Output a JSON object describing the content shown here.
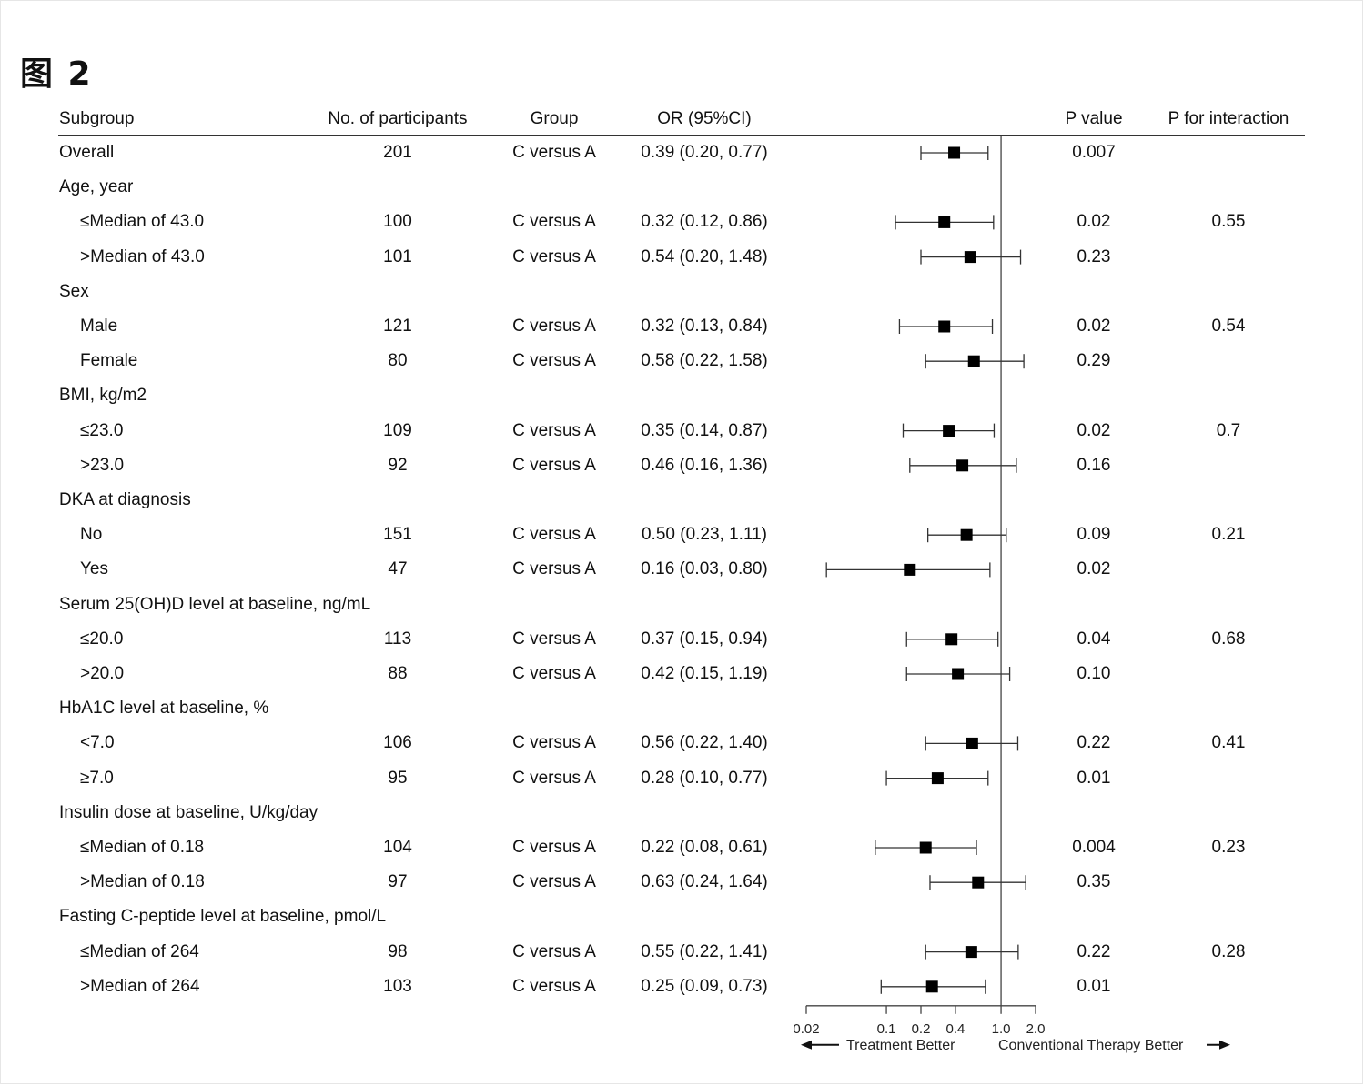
{
  "figure_title": "图 2",
  "headers": {
    "subgroup": "Subgroup",
    "participants": "No. of participants",
    "group": "Group",
    "or": "OR (95%CI)",
    "p": "P value",
    "p_interaction": "P for interaction"
  },
  "rows": [
    {
      "label": "Overall",
      "level": 0,
      "n": "201",
      "group": "C versus A",
      "or_text": "0.39 (0.20, 0.77)",
      "p": "0.007",
      "p_int": ""
    },
    {
      "label": "Age, year",
      "level": 0,
      "section": true
    },
    {
      "label": "≤Median of 43.0",
      "level": 1,
      "n": "100",
      "group": "C versus A",
      "or_text": "0.32 (0.12, 0.86)",
      "p": "0.02",
      "p_int": "0.55"
    },
    {
      "label": ">Median of 43.0",
      "level": 1,
      "n": "101",
      "group": "C versus A",
      "or_text": "0.54 (0.20, 1.48)",
      "p": "0.23",
      "p_int": ""
    },
    {
      "label": "Sex",
      "level": 0,
      "section": true
    },
    {
      "label": "Male",
      "level": 1,
      "n": "121",
      "group": "C versus A",
      "or_text": "0.32 (0.13, 0.84)",
      "p": "0.02",
      "p_int": "0.54"
    },
    {
      "label": "Female",
      "level": 1,
      "n": "80",
      "group": "C versus A",
      "or_text": "0.58 (0.22, 1.58)",
      "p": "0.29",
      "p_int": ""
    },
    {
      "label": "BMI, kg/m2",
      "level": 0,
      "section": true
    },
    {
      "label": "≤23.0",
      "level": 1,
      "n": "109",
      "group": "C versus A",
      "or_text": "0.35 (0.14, 0.87)",
      "p": "0.02",
      "p_int": "0.7"
    },
    {
      "label": ">23.0",
      "level": 1,
      "n": "92",
      "group": "C versus A",
      "or_text": "0.46 (0.16, 1.36)",
      "p": "0.16",
      "p_int": ""
    },
    {
      "label": "DKA at diagnosis",
      "level": 0,
      "section": true
    },
    {
      "label": "No",
      "level": 1,
      "n": "151",
      "group": "C versus A",
      "or_text": "0.50 (0.23, 1.11)",
      "p": "0.09",
      "p_int": "0.21"
    },
    {
      "label": "Yes",
      "level": 1,
      "n": "47",
      "group": "C versus A",
      "or_text": "0.16 (0.03, 0.80)",
      "p": "0.02",
      "p_int": ""
    },
    {
      "label": "Serum 25(OH)D level at baseline, ng/mL",
      "level": 0,
      "section": true
    },
    {
      "label": "≤20.0",
      "level": 1,
      "n": "113",
      "group": "C versus A",
      "or_text": "0.37 (0.15, 0.94)",
      "p": "0.04",
      "p_int": "0.68"
    },
    {
      "label": ">20.0",
      "level": 1,
      "n": "88",
      "group": "C versus A",
      "or_text": "0.42 (0.15, 1.19)",
      "p": "0.10",
      "p_int": ""
    },
    {
      "label": "HbA1C level at baseline, %",
      "level": 0,
      "section": true
    },
    {
      "label": "<7.0",
      "level": 1,
      "n": "106",
      "group": "C versus A",
      "or_text": "0.56 (0.22, 1.40)",
      "p": "0.22",
      "p_int": "0.41"
    },
    {
      "label": "≥7.0",
      "level": 1,
      "n": "95",
      "group": "C versus A",
      "or_text": "0.28 (0.10, 0.77)",
      "p": "0.01",
      "p_int": ""
    },
    {
      "label": "Insulin dose at baseline, U/kg/day",
      "level": 0,
      "section": true
    },
    {
      "label": "≤Median of 0.18",
      "level": 1,
      "n": "104",
      "group": "C versus A",
      "or_text": "0.22 (0.08, 0.61)",
      "p": "0.004",
      "p_int": "0.23"
    },
    {
      "label": ">Median of 0.18",
      "level": 1,
      "n": "97",
      "group": "C versus A",
      "or_text": "0.63 (0.24, 1.64)",
      "p": "0.35",
      "p_int": ""
    },
    {
      "label": "Fasting C-peptide level at baseline, pmol/L",
      "level": 0,
      "section": true
    },
    {
      "label": "≤Median of 264",
      "level": 1,
      "n": "98",
      "group": "C versus A",
      "or_text": "0.55 (0.22, 1.41)",
      "p": "0.22",
      "p_int": "0.28"
    },
    {
      "label": ">Median of 264",
      "level": 1,
      "n": "103",
      "group": "C versus A",
      "or_text": "0.25 (0.09, 0.73)",
      "p": "0.01",
      "p_int": ""
    }
  ],
  "chart_data": {
    "type": "scatter",
    "x_scale": "log",
    "xlim": [
      0.02,
      2.0
    ],
    "reference_line": 1.0,
    "x_ticks": [
      0.02,
      0.1,
      0.2,
      0.4,
      1.0,
      2.0
    ],
    "x_tick_labels": [
      "0.02",
      "0.1",
      "0.2",
      "0.4",
      "1.0",
      "2.0"
    ],
    "left_direction_label": "Treatment Better",
    "right_direction_label": "Conventional Therapy Better",
    "categories": [
      "Overall",
      "≤Median of 43.0",
      ">Median of 43.0",
      "Male",
      "Female",
      "≤23.0",
      ">23.0",
      "No",
      "Yes",
      "≤20.0",
      ">20.0",
      "<7.0",
      "≥7.0",
      "≤Median of 0.18",
      ">Median of 0.18",
      "≤Median of 264",
      ">Median of 264"
    ],
    "series": [
      {
        "or": [
          0.39,
          0.32,
          0.54,
          0.32,
          0.58,
          0.35,
          0.46,
          0.5,
          0.16,
          0.37,
          0.42,
          0.56,
          0.28,
          0.22,
          0.63,
          0.55,
          0.25
        ],
        "lower": [
          0.2,
          0.12,
          0.2,
          0.13,
          0.22,
          0.14,
          0.16,
          0.23,
          0.03,
          0.15,
          0.15,
          0.22,
          0.1,
          0.08,
          0.24,
          0.22,
          0.09
        ],
        "upper": [
          0.77,
          0.86,
          1.48,
          0.84,
          1.58,
          0.87,
          1.36,
          1.11,
          0.8,
          0.94,
          1.19,
          1.4,
          0.77,
          0.61,
          1.64,
          1.41,
          0.73
        ]
      }
    ],
    "marker_color": "#000000",
    "line_color": "#333333"
  }
}
